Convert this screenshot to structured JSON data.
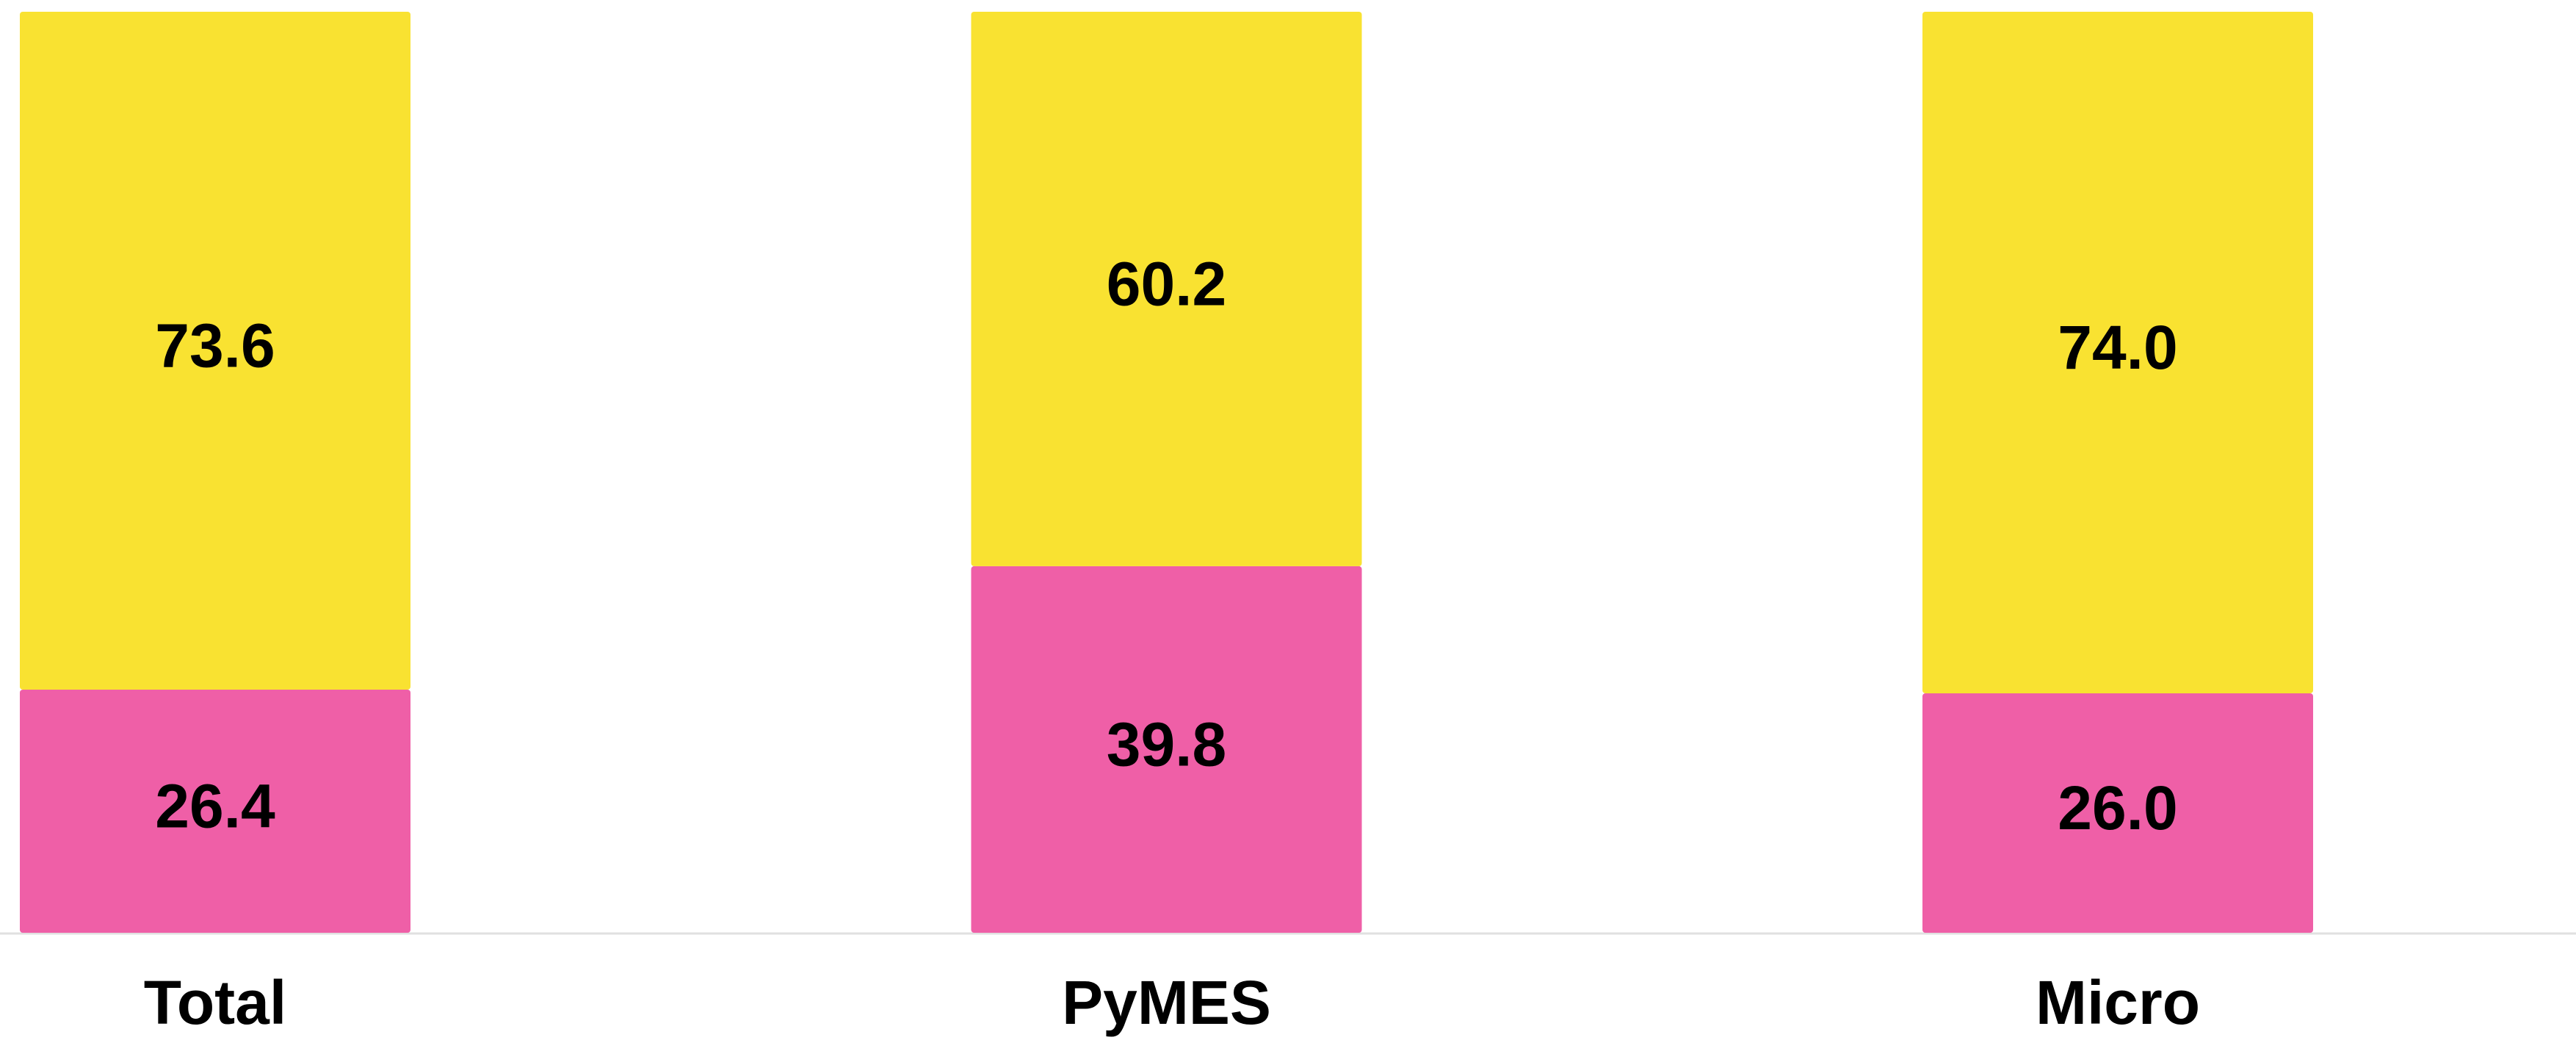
{
  "chart_data": {
    "type": "stacked_bar",
    "categories": [
      "Total",
      "PyMES",
      "Micro"
    ],
    "series": [
      {
        "color": "#ef5fa7",
        "values": [
          26.4,
          39.8,
          26.0
        ],
        "value_labels": [
          "26.4",
          "39.8",
          "26.0"
        ]
      },
      {
        "color": "#f9e231",
        "values": [
          73.6,
          60.2,
          74.0
        ],
        "value_labels": [
          "73.6",
          "60.2",
          "74.0"
        ]
      }
    ],
    "ylim": [
      0,
      100
    ]
  }
}
